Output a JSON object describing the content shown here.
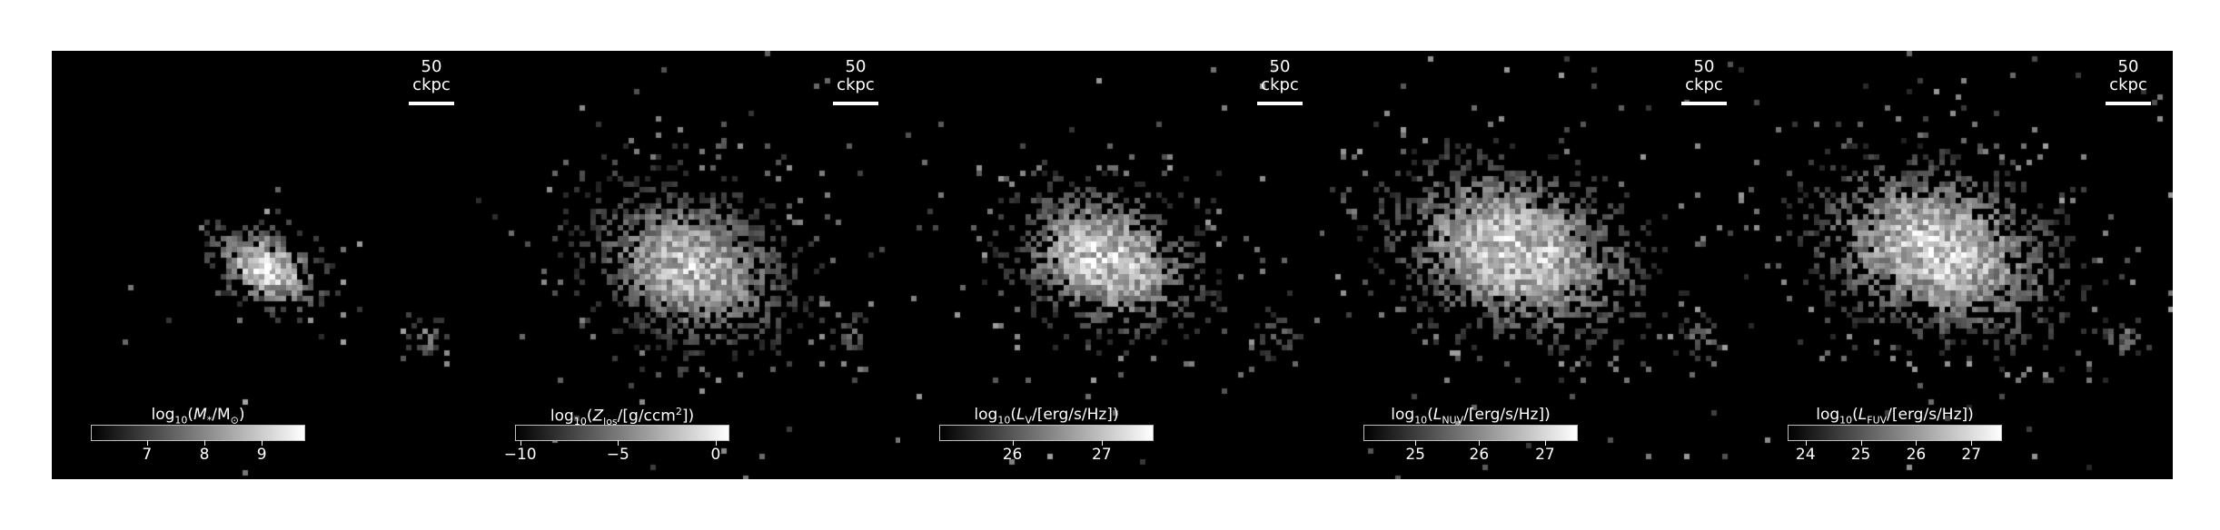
{
  "panels": [
    {
      "id": "stellar-mass",
      "scale_label": "50 ckpc",
      "colorbar": {
        "title_prefix": "log",
        "title_base": "10",
        "title_open": "(",
        "symbol": "M",
        "symbol_sub": "*",
        "mid": "/M",
        "mid_sub": "⊙",
        "close": ")",
        "tick_labels": [
          "7",
          "8",
          "9"
        ],
        "tick_fracs": [
          0.26,
          0.53,
          0.8
        ]
      }
    },
    {
      "id": "metallicity",
      "scale_label": "50 ckpc",
      "colorbar": {
        "title_prefix": "log",
        "title_base": "10",
        "title_open": "(",
        "symbol": "Z",
        "symbol_sub": "los",
        "mid": "/[g/ccm",
        "mid_sup": "2",
        "close": "])",
        "tick_labels": [
          "−10",
          "−5",
          "0"
        ],
        "tick_fracs": [
          0.02,
          0.48,
          0.94
        ]
      }
    },
    {
      "id": "v-band-luminosity",
      "scale_label": "50 ckpc",
      "colorbar": {
        "title_prefix": "log",
        "title_base": "10",
        "title_open": "(",
        "symbol": "L",
        "symbol_sub": "V",
        "mid": "/[erg/s/Hz]",
        "close": ")",
        "tick_labels": [
          "26",
          "27"
        ],
        "tick_fracs": [
          0.34,
          0.76
        ]
      }
    },
    {
      "id": "nuv-luminosity",
      "scale_label": "50 ckpc",
      "colorbar": {
        "title_prefix": "log",
        "title_base": "10",
        "title_open": "(",
        "symbol": "L",
        "symbol_sub": "NUV",
        "mid": "/[erg/s/Hz]",
        "close": ")",
        "tick_labels": [
          "25",
          "26",
          "27"
        ],
        "tick_fracs": [
          0.24,
          0.54,
          0.85
        ]
      }
    },
    {
      "id": "fuv-luminosity",
      "scale_label": "50 ckpc",
      "colorbar": {
        "title_prefix": "log",
        "title_base": "10",
        "title_open": "(",
        "symbol": "L",
        "symbol_sub": "FUV",
        "mid": "/[erg/s/Hz]",
        "close": ")",
        "tick_labels": [
          "24",
          "25",
          "26",
          "27"
        ],
        "tick_fracs": [
          0.08,
          0.34,
          0.6,
          0.86
        ]
      }
    }
  ]
}
